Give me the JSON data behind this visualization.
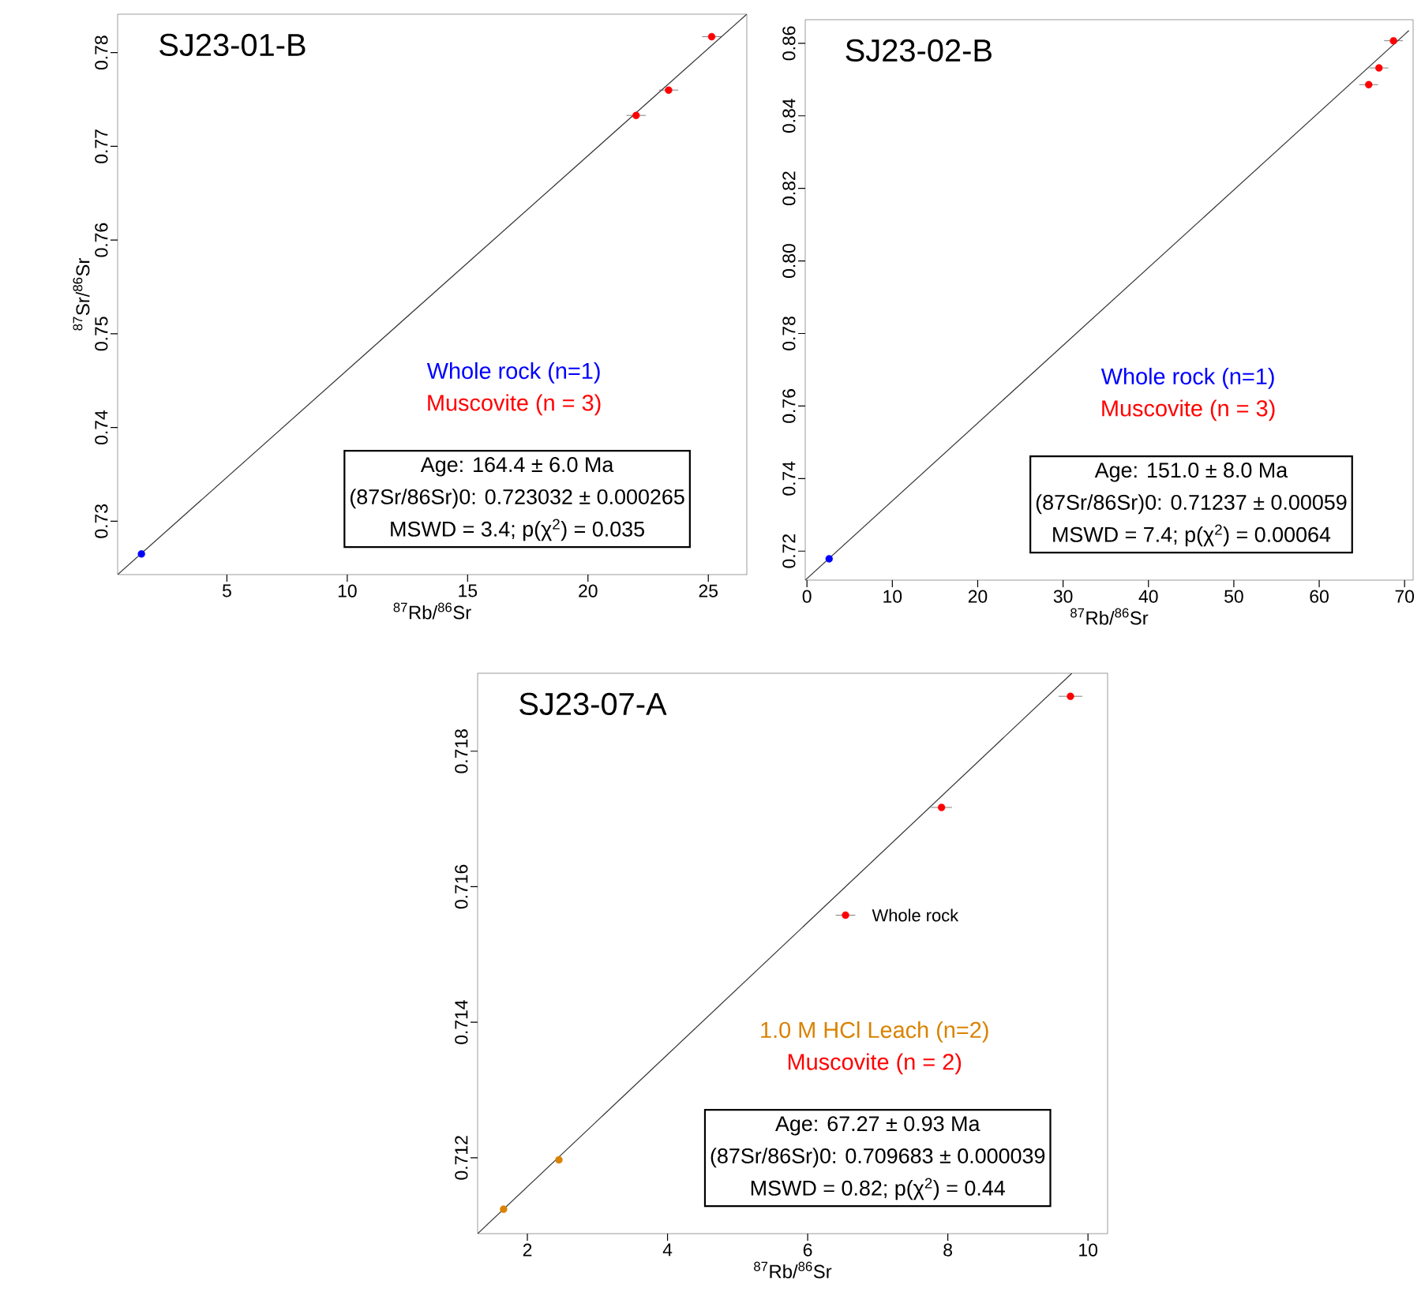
{
  "chart_data": [
    {
      "type": "scatter",
      "title": "SJ23-01-B",
      "xlabel": "$^{87}$Rb/$^{86}$Sr",
      "ylabel": "$^{87}$Sr/$^{86}$Sr",
      "xlim": [
        0.46,
        26.6
      ],
      "ylim": [
        0.7243,
        0.7841
      ],
      "xticks": [
        5,
        10,
        15,
        20,
        25
      ],
      "yticks": [
        0.73,
        0.74,
        0.75,
        0.76,
        0.77,
        0.78
      ],
      "series": [
        {
          "name": "Whole rock (n=1)",
          "color": "#0000ff",
          "x": [
            1.45
          ],
          "values": [
            0.7265
          ]
        },
        {
          "name": "Muscovite (n = 3)",
          "color": "#ff0000",
          "x": [
            22.0,
            23.35,
            25.14
          ],
          "values": [
            0.7733,
            0.776,
            0.7817
          ],
          "xerrors": [
            0.4,
            0.4,
            0.4
          ]
        },
        {
          "type": "line",
          "color": "#333333",
          "x": [
            0.46,
            26.6
          ],
          "values": [
            0.7243,
            0.7841
          ]
        }
      ],
      "annotations": [
        "Age: 164.4 ± 6.0 Ma",
        "(87Sr/86Sr)0: 0.723032 ± 0.000265",
        "MSWD = 3.4; p(χ$^{2}$) = 0.035"
      ]
    },
    {
      "type": "scatter",
      "title": "SJ23-02-B",
      "xlabel": "$^{87}$Rb/$^{86}$Sr",
      "xlim": [
        -0.2,
        71
      ],
      "ylim": [
        0.712,
        0.8665
      ],
      "xticks": [
        0,
        10,
        20,
        30,
        40,
        50,
        60,
        70
      ],
      "yticks": [
        0.72,
        0.74,
        0.76,
        0.78,
        {
          "value": 0.8,
          "label": "0.80"
        },
        0.82,
        0.84,
        0.86
      ],
      "series": [
        {
          "name": "Whole rock (n=1)",
          "color": "#0000ff",
          "x": [
            2.6
          ],
          "values": [
            0.7179
          ]
        },
        {
          "name": "Muscovite (n = 3)",
          "color": "#ff0000",
          "x": [
            65.8,
            67.0,
            68.7
          ],
          "values": [
            0.8486,
            0.8532,
            0.8607
          ],
          "xerrors": [
            1.1,
            1.1,
            1.1
          ]
        },
        {
          "type": "line",
          "color": "#333333",
          "x": [
            -0.2,
            70.5
          ],
          "values": [
            0.712,
            0.8635
          ]
        }
      ],
      "annotations": [
        "Age: 151.0 ± 8.0 Ma",
        "(87Sr/86Sr)0: 0.71237 ± 0.00059",
        "MSWD = 7.4; p(χ$^{2}$) = 0.00064"
      ]
    },
    {
      "type": "scatter",
      "title": "SJ23-07-A",
      "xlabel": "$^{87}$Rb/$^{86}$Sr",
      "xlim": [
        1.29,
        10.28
      ],
      "ylim": [
        0.71088,
        0.71915
      ],
      "xticks": [
        2,
        4,
        6,
        8,
        10
      ],
      "yticks": [
        0.712,
        0.714,
        0.716,
        0.718
      ],
      "series": [
        {
          "name": "1.0 M HCl Leach (n=2)",
          "color": "#d98200",
          "x": [
            1.66,
            2.45
          ],
          "values": [
            0.71124,
            0.71197
          ]
        },
        {
          "color": "#ff0000",
          "x": [
            6.54
          ],
          "values": [
            0.71558
          ],
          "xerrors": [
            0.14
          ]
        },
        {
          "name": "Muscovite (n = 2)",
          "color": "#ff0000",
          "x": [
            7.91,
            9.75
          ],
          "values": [
            0.71717,
            0.71881
          ],
          "xerrors": [
            0.15,
            0.17
          ]
        },
        {
          "type": "line",
          "color": "#333333",
          "x": [
            1.29,
            9.77
          ],
          "values": [
            0.71088,
            0.71915
          ]
        }
      ],
      "annotations": [
        {
          "text": "Whole rock",
          "x": 6.54,
          "y": 0.71558
        },
        "Age: 67.27 ± 0.93 Ma",
        "(87Sr/86Sr)0: 0.709683 ± 0.000039",
        "MSWD = 0.82; p(χ$^{2}$) = 0.44"
      ]
    }
  ]
}
